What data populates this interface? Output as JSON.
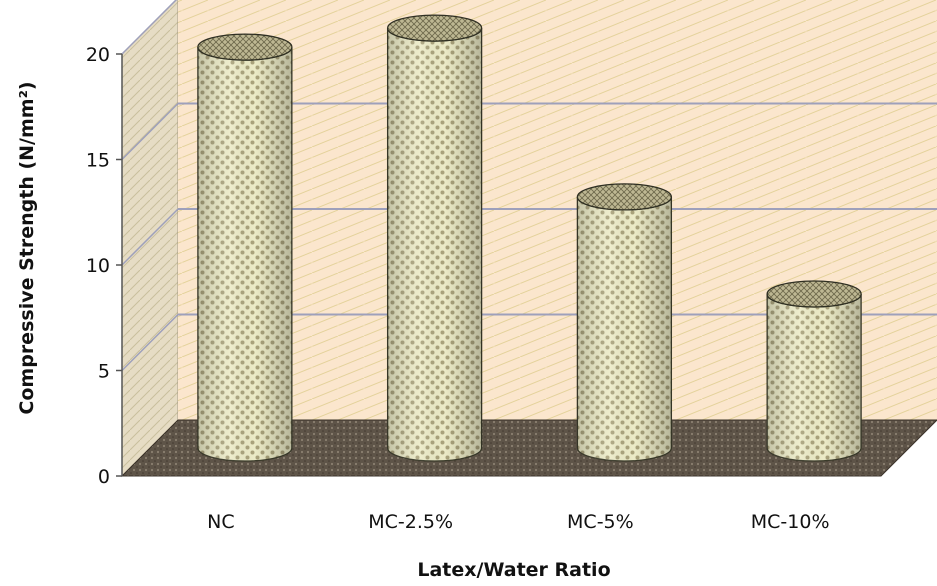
{
  "chart_data": {
    "type": "bar",
    "categories": [
      "NC",
      "MC-2.5%",
      "MC-5%",
      "MC-10%"
    ],
    "values": [
      19.0,
      19.9,
      11.9,
      7.3
    ],
    "title": "",
    "xlabel": "Latex/Water Ratio",
    "ylabel": "Compressive Strength (N/mm²)",
    "ylim": [
      0,
      20
    ],
    "yticks": [
      "0",
      "5",
      "10",
      "15",
      "20"
    ],
    "grid": true,
    "legend": "none",
    "style": "3d-cylinder",
    "colors": {
      "wall": "#fbe6cd",
      "wall_hatch": "#e8d59a",
      "gridline": "#9ea0bb",
      "floor": "#5e5448",
      "side_wall": "#d3c8b2",
      "bar_fill": "#e8e4ba",
      "bar_dot": "#a9a27d",
      "bar_outline": "#3a3a2a"
    }
  }
}
